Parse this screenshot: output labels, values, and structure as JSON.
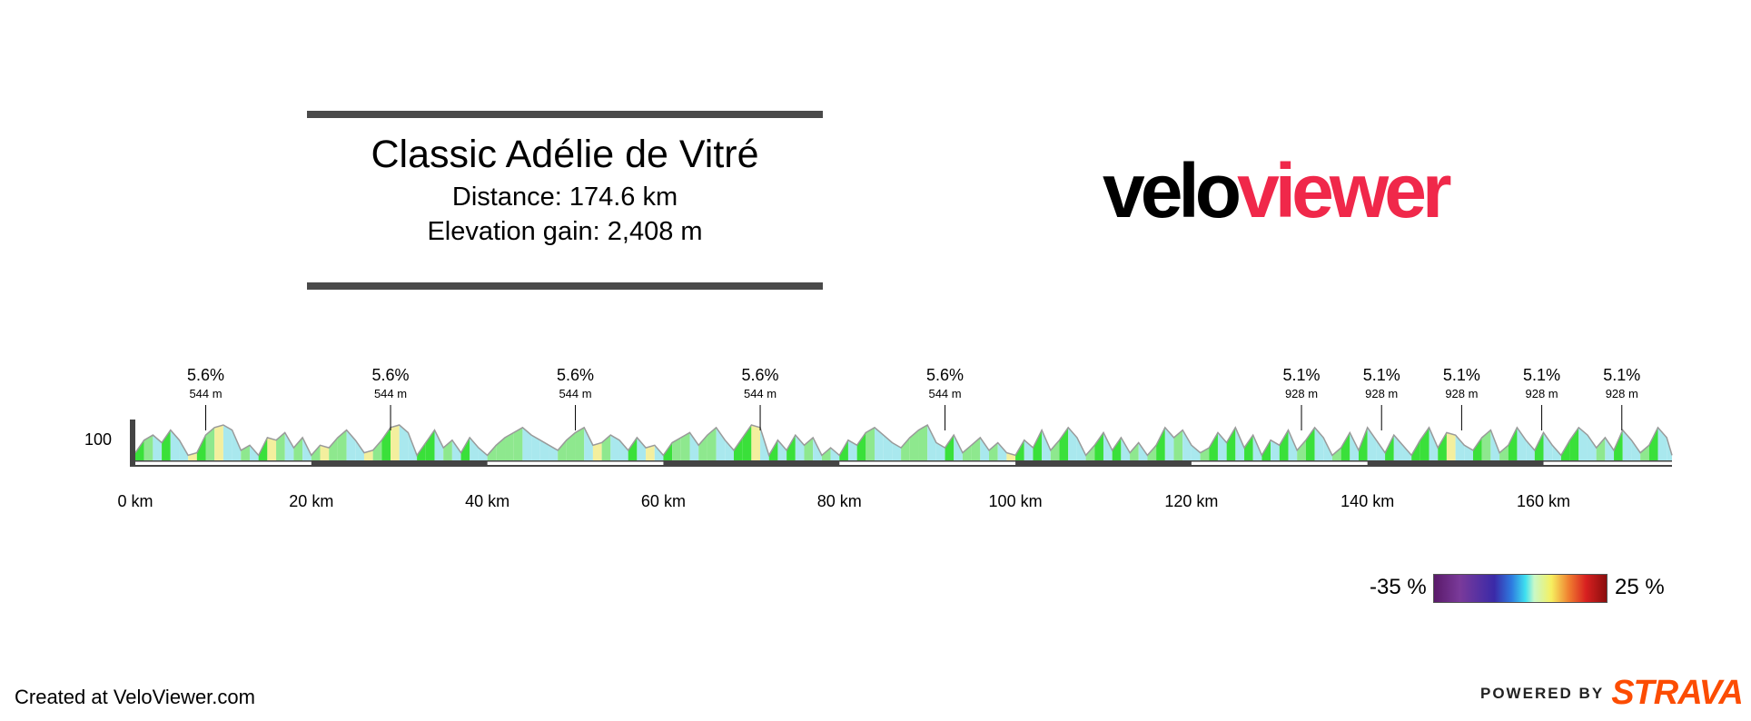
{
  "route": {
    "title": "Classic Adélie de Vitré",
    "distance_text": "Distance: 174.6 km",
    "elevation_text": "Elevation gain: 2,408 m"
  },
  "logo": {
    "part1": "velo",
    "part2": "viewer"
  },
  "chart_data": {
    "type": "area",
    "title": "Classic Adélie de Vitré",
    "xlabel": "",
    "ylabel": "",
    "x_unit": "km",
    "xlim": [
      0,
      174.6
    ],
    "ylim": [
      90,
      104
    ],
    "x_ticks": [
      0,
      20,
      40,
      60,
      80,
      100,
      120,
      140,
      160
    ],
    "x_tick_labels": [
      "0 km",
      "20 km",
      "40 km",
      "60 km",
      "80 km",
      "100 km",
      "120 km",
      "140 km",
      "160 km"
    ],
    "y_ticks": [
      100
    ],
    "y_tick_labels": [
      "100"
    ],
    "elevation_profile": {
      "x": [
        0,
        1,
        2,
        3,
        4,
        5,
        6,
        7,
        8,
        9,
        10,
        11,
        12,
        13,
        14,
        15,
        16,
        17,
        18,
        19,
        20,
        21,
        22,
        23,
        24,
        25,
        26,
        27,
        28,
        29,
        30,
        31,
        32,
        33,
        34,
        35,
        36,
        37,
        38,
        39,
        40,
        41,
        42,
        43,
        44,
        45,
        46,
        47,
        48,
        49,
        50,
        51,
        52,
        53,
        54,
        55,
        56,
        57,
        58,
        59,
        60,
        61,
        62,
        63,
        64,
        65,
        66,
        67,
        68,
        69,
        70,
        71,
        72,
        73,
        74,
        75,
        76,
        77,
        78,
        79,
        80,
        81,
        82,
        83,
        84,
        85,
        86,
        87,
        88,
        89,
        90,
        91,
        92,
        93,
        94,
        95,
        96,
        97,
        98,
        99,
        100,
        101,
        102,
        103,
        104,
        105,
        106,
        107,
        108,
        109,
        110,
        111,
        112,
        113,
        114,
        115,
        116,
        117,
        118,
        119,
        120,
        121,
        122,
        123,
        124,
        125,
        126,
        127,
        128,
        129,
        130,
        131,
        132,
        133,
        134,
        135,
        136,
        137,
        138,
        139,
        140,
        141,
        142,
        143,
        144,
        145,
        146,
        147,
        148,
        149,
        150,
        151,
        152,
        153,
        154,
        155,
        156,
        157,
        158,
        159,
        160,
        161,
        162,
        163,
        164,
        165,
        166,
        167,
        168,
        169,
        170,
        171,
        172,
        173,
        174,
        174.6
      ],
      "y": [
        93,
        98,
        100,
        97,
        102,
        98,
        92,
        93,
        100,
        103,
        104,
        102,
        94,
        96,
        92,
        99,
        98,
        101,
        95,
        99,
        92,
        96,
        95,
        99,
        102,
        98,
        93,
        94,
        98,
        103,
        104,
        101,
        92,
        97,
        102,
        95,
        98,
        93,
        99,
        95,
        92,
        96,
        99,
        101,
        103,
        100,
        98,
        96,
        94,
        98,
        101,
        103,
        96,
        97,
        100,
        98,
        94,
        99,
        95,
        96,
        92,
        97,
        99,
        101,
        96,
        100,
        103,
        98,
        94,
        99,
        104,
        103,
        92,
        98,
        94,
        100,
        96,
        99,
        92,
        95,
        92,
        98,
        96,
        101,
        103,
        100,
        97,
        95,
        99,
        102,
        104,
        97,
        95,
        100,
        93,
        96,
        99,
        94,
        97,
        93,
        92,
        98,
        95,
        102,
        94,
        98,
        103,
        99,
        92,
        96,
        101,
        94,
        99,
        93,
        97,
        92,
        96,
        103,
        99,
        102,
        96,
        93,
        95,
        101,
        97,
        103,
        95,
        100,
        92,
        98,
        96,
        102,
        94,
        98,
        103,
        99,
        92,
        95,
        101,
        94,
        103,
        98,
        93,
        100,
        96,
        92,
        98,
        103,
        95,
        101,
        100,
        96,
        94,
        99,
        102,
        93,
        96,
        103,
        98,
        94,
        101,
        96,
        92,
        98,
        103,
        100,
        95,
        99,
        94,
        102,
        98,
        93,
        96,
        103,
        99,
        92
      ]
    },
    "climbs": [
      {
        "km": 8.0,
        "gradient": "5.6%",
        "length": "544 m"
      },
      {
        "km": 29.0,
        "gradient": "5.6%",
        "length": "544 m"
      },
      {
        "km": 50.0,
        "gradient": "5.6%",
        "length": "544 m"
      },
      {
        "km": 71.0,
        "gradient": "5.6%",
        "length": "544 m"
      },
      {
        "km": 92.0,
        "gradient": "5.6%",
        "length": "544 m"
      },
      {
        "km": 132.5,
        "gradient": "5.1%",
        "length": "928 m"
      },
      {
        "km": 141.6,
        "gradient": "5.1%",
        "length": "928 m"
      },
      {
        "km": 150.7,
        "gradient": "5.1%",
        "length": "928 m"
      },
      {
        "km": 159.8,
        "gradient": "5.1%",
        "length": "928 m"
      },
      {
        "km": 168.9,
        "gradient": "5.1%",
        "length": "928 m"
      }
    ],
    "gradient_legend": {
      "min": "-35 %",
      "max": "25 %"
    },
    "colors": {
      "climb": "#8ee88e",
      "steep": "#3ae03a",
      "descent": "#a9e8ee",
      "flat": "#f3ef9e",
      "outline": "#9a9a9a",
      "axis": "#444444"
    }
  },
  "footer": {
    "created": "Created at VeloViewer.com",
    "powered": "POWERED BY",
    "brand": "STRAVA"
  }
}
